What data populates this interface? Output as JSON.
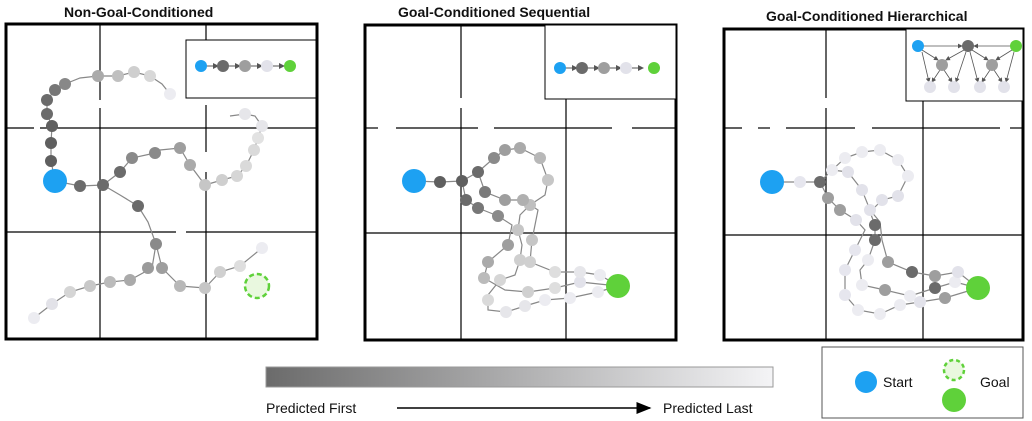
{
  "panels": [
    {
      "title": "Non-Goal-Conditioned"
    },
    {
      "title": "Goal-Conditioned Sequential"
    },
    {
      "title": "Goal-Conditioned Hierarchical"
    }
  ],
  "gradient_bar": {
    "start_color": "#6b6b6b",
    "end_color": "#f4f4f6",
    "left_label": "Predicted First",
    "right_label": "Predicted Last"
  },
  "legend": {
    "start_label": "Start",
    "goal_label": "Goal",
    "start_color": "#1da1f2",
    "goal_color": "#5fd13a"
  }
}
